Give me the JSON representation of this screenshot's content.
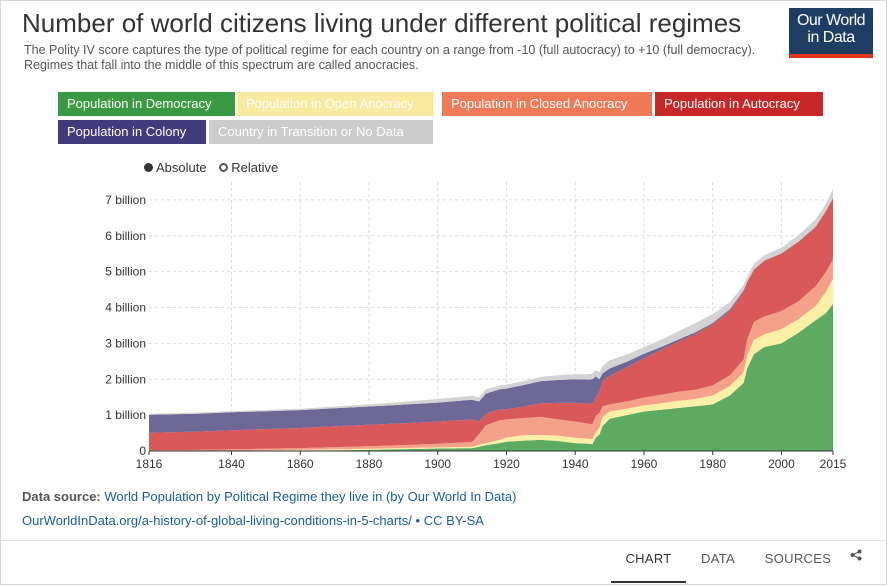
{
  "header": {
    "title": "Number of world citizens living under different political regimes",
    "subtitle": "The Polity IV score captures the type of political regime for each country on a range from -10 (full autocracy) to +10 (full democracy). Regimes that fall into the middle of this spectrum are called anocracies.",
    "logo_line1": "Our World",
    "logo_line2": "in Data"
  },
  "legend": {
    "items": [
      {
        "label": "Population in Democracy",
        "color": "#3a9a44"
      },
      {
        "label": "Population in Open Anocracy",
        "color": "#faeaa0"
      },
      {
        "label": "Population in Closed Anocracy",
        "color": "#f07a58"
      },
      {
        "label": "Population in Autocracy",
        "color": "#c62828"
      },
      {
        "label": "Population in Colony",
        "color": "#433a7c"
      },
      {
        "label": "Country in Transition or No Data",
        "color": "#cccccc"
      }
    ]
  },
  "toggle": {
    "absolute_label": "Absolute",
    "relative_label": "Relative",
    "selected": "Absolute"
  },
  "chart_data": {
    "type": "area",
    "stacked": true,
    "title": "Number of world citizens living under different political regimes",
    "x": [
      1816,
      1830,
      1840,
      1860,
      1870,
      1880,
      1900,
      1910,
      1912,
      1914,
      1918,
      1920,
      1925,
      1930,
      1935,
      1940,
      1944,
      1945,
      1946,
      1947,
      1948,
      1950,
      1955,
      1960,
      1965,
      1970,
      1975,
      1980,
      1985,
      1989,
      1990,
      1992,
      1995,
      2000,
      2005,
      2010,
      2013,
      2015
    ],
    "ylim": [
      0,
      7500000000
    ],
    "yticks": [
      0,
      1000000000,
      2000000000,
      3000000000,
      4000000000,
      5000000000,
      6000000000,
      7000000000
    ],
    "ytick_labels": [
      "0",
      "1 billion",
      "2 billion",
      "3 billion",
      "4 billion",
      "5 billion",
      "6 billion",
      "7 billion"
    ],
    "xticks": [
      1816,
      1840,
      1860,
      1880,
      1900,
      1920,
      1940,
      1960,
      1980,
      2000,
      2015
    ],
    "xtick_labels": [
      "1816",
      "1840",
      "1860",
      "1880",
      "1900",
      "1920",
      "1940",
      "1960",
      "1980",
      "2000",
      "2015"
    ],
    "series": [
      {
        "name": "Population in Democracy",
        "color": "#5cab61",
        "values": [
          0,
          0,
          0,
          10000000,
          20000000,
          30000000,
          70000000,
          80000000,
          120000000,
          160000000,
          220000000,
          260000000,
          290000000,
          310000000,
          280000000,
          220000000,
          200000000,
          190000000,
          380000000,
          450000000,
          700000000,
          900000000,
          1000000000,
          1100000000,
          1150000000,
          1200000000,
          1250000000,
          1300000000,
          1550000000,
          1900000000,
          2300000000,
          2700000000,
          2900000000,
          3000000000,
          3300000000,
          3650000000,
          3850000000,
          4100000000
        ]
      },
      {
        "name": "Population in Open Anocracy",
        "color": "#fbf0a6",
        "values": [
          0,
          0,
          10000000,
          20000000,
          30000000,
          30000000,
          30000000,
          40000000,
          50000000,
          60000000,
          90000000,
          120000000,
          150000000,
          140000000,
          150000000,
          150000000,
          140000000,
          140000000,
          150000000,
          200000000,
          250000000,
          200000000,
          180000000,
          170000000,
          180000000,
          200000000,
          200000000,
          250000000,
          260000000,
          300000000,
          350000000,
          400000000,
          350000000,
          400000000,
          380000000,
          400000000,
          600000000,
          700000000
        ]
      },
      {
        "name": "Population in Closed Anocracy",
        "color": "#f4a18a",
        "values": [
          20000000,
          30000000,
          40000000,
          50000000,
          60000000,
          70000000,
          100000000,
          130000000,
          300000000,
          500000000,
          550000000,
          500000000,
          480000000,
          500000000,
          450000000,
          450000000,
          420000000,
          420000000,
          450000000,
          400000000,
          300000000,
          200000000,
          200000000,
          220000000,
          240000000,
          250000000,
          260000000,
          280000000,
          300000000,
          350000000,
          450000000,
          500000000,
          500000000,
          500000000,
          500000000,
          550000000,
          550000000,
          550000000
        ]
      },
      {
        "name": "Population in Autocracy",
        "color": "#d9595a",
        "values": [
          490000000,
          510000000,
          530000000,
          560000000,
          580000000,
          600000000,
          620000000,
          630000000,
          350000000,
          320000000,
          300000000,
          280000000,
          320000000,
          380000000,
          460000000,
          520000000,
          560000000,
          580000000,
          500000000,
          600000000,
          700000000,
          800000000,
          950000000,
          1100000000,
          1250000000,
          1400000000,
          1550000000,
          1700000000,
          1800000000,
          1900000000,
          1600000000,
          1450000000,
          1550000000,
          1600000000,
          1650000000,
          1650000000,
          1700000000,
          1700000000
        ]
      },
      {
        "name": "Population in Colony",
        "color": "#6e6896",
        "values": [
          500000000,
          500000000,
          500000000,
          500000000,
          500000000,
          510000000,
          530000000,
          550000000,
          560000000,
          560000000,
          560000000,
          580000000,
          600000000,
          620000000,
          640000000,
          660000000,
          670000000,
          670000000,
          600000000,
          350000000,
          220000000,
          200000000,
          160000000,
          120000000,
          80000000,
          60000000,
          50000000,
          40000000,
          40000000,
          30000000,
          20000000,
          10000000,
          10000000,
          10000000,
          10000000,
          10000000,
          0,
          0
        ]
      },
      {
        "name": "Country in Transition or No Data",
        "color": "#d3d3d3",
        "values": [
          30000000,
          30000000,
          30000000,
          40000000,
          50000000,
          60000000,
          100000000,
          110000000,
          120000000,
          120000000,
          110000000,
          110000000,
          110000000,
          120000000,
          130000000,
          140000000,
          150000000,
          160000000,
          170000000,
          200000000,
          200000000,
          230000000,
          200000000,
          190000000,
          200000000,
          230000000,
          250000000,
          250000000,
          200000000,
          150000000,
          140000000,
          160000000,
          150000000,
          160000000,
          180000000,
          200000000,
          200000000,
          250000000
        ]
      }
    ]
  },
  "source": {
    "label": "Data source:",
    "text": "World Population by Political Regime they live in (by Our World In Data)",
    "url_text": "OurWorldInData.org/a-history-of-global-living-conditions-in-5-charts/",
    "license": "• CC BY-SA"
  },
  "footer": {
    "tabs": [
      {
        "label": "CHART",
        "active": true
      },
      {
        "label": "DATA",
        "active": false
      },
      {
        "label": "SOURCES",
        "active": false
      }
    ],
    "share_icon": "share-icon"
  }
}
